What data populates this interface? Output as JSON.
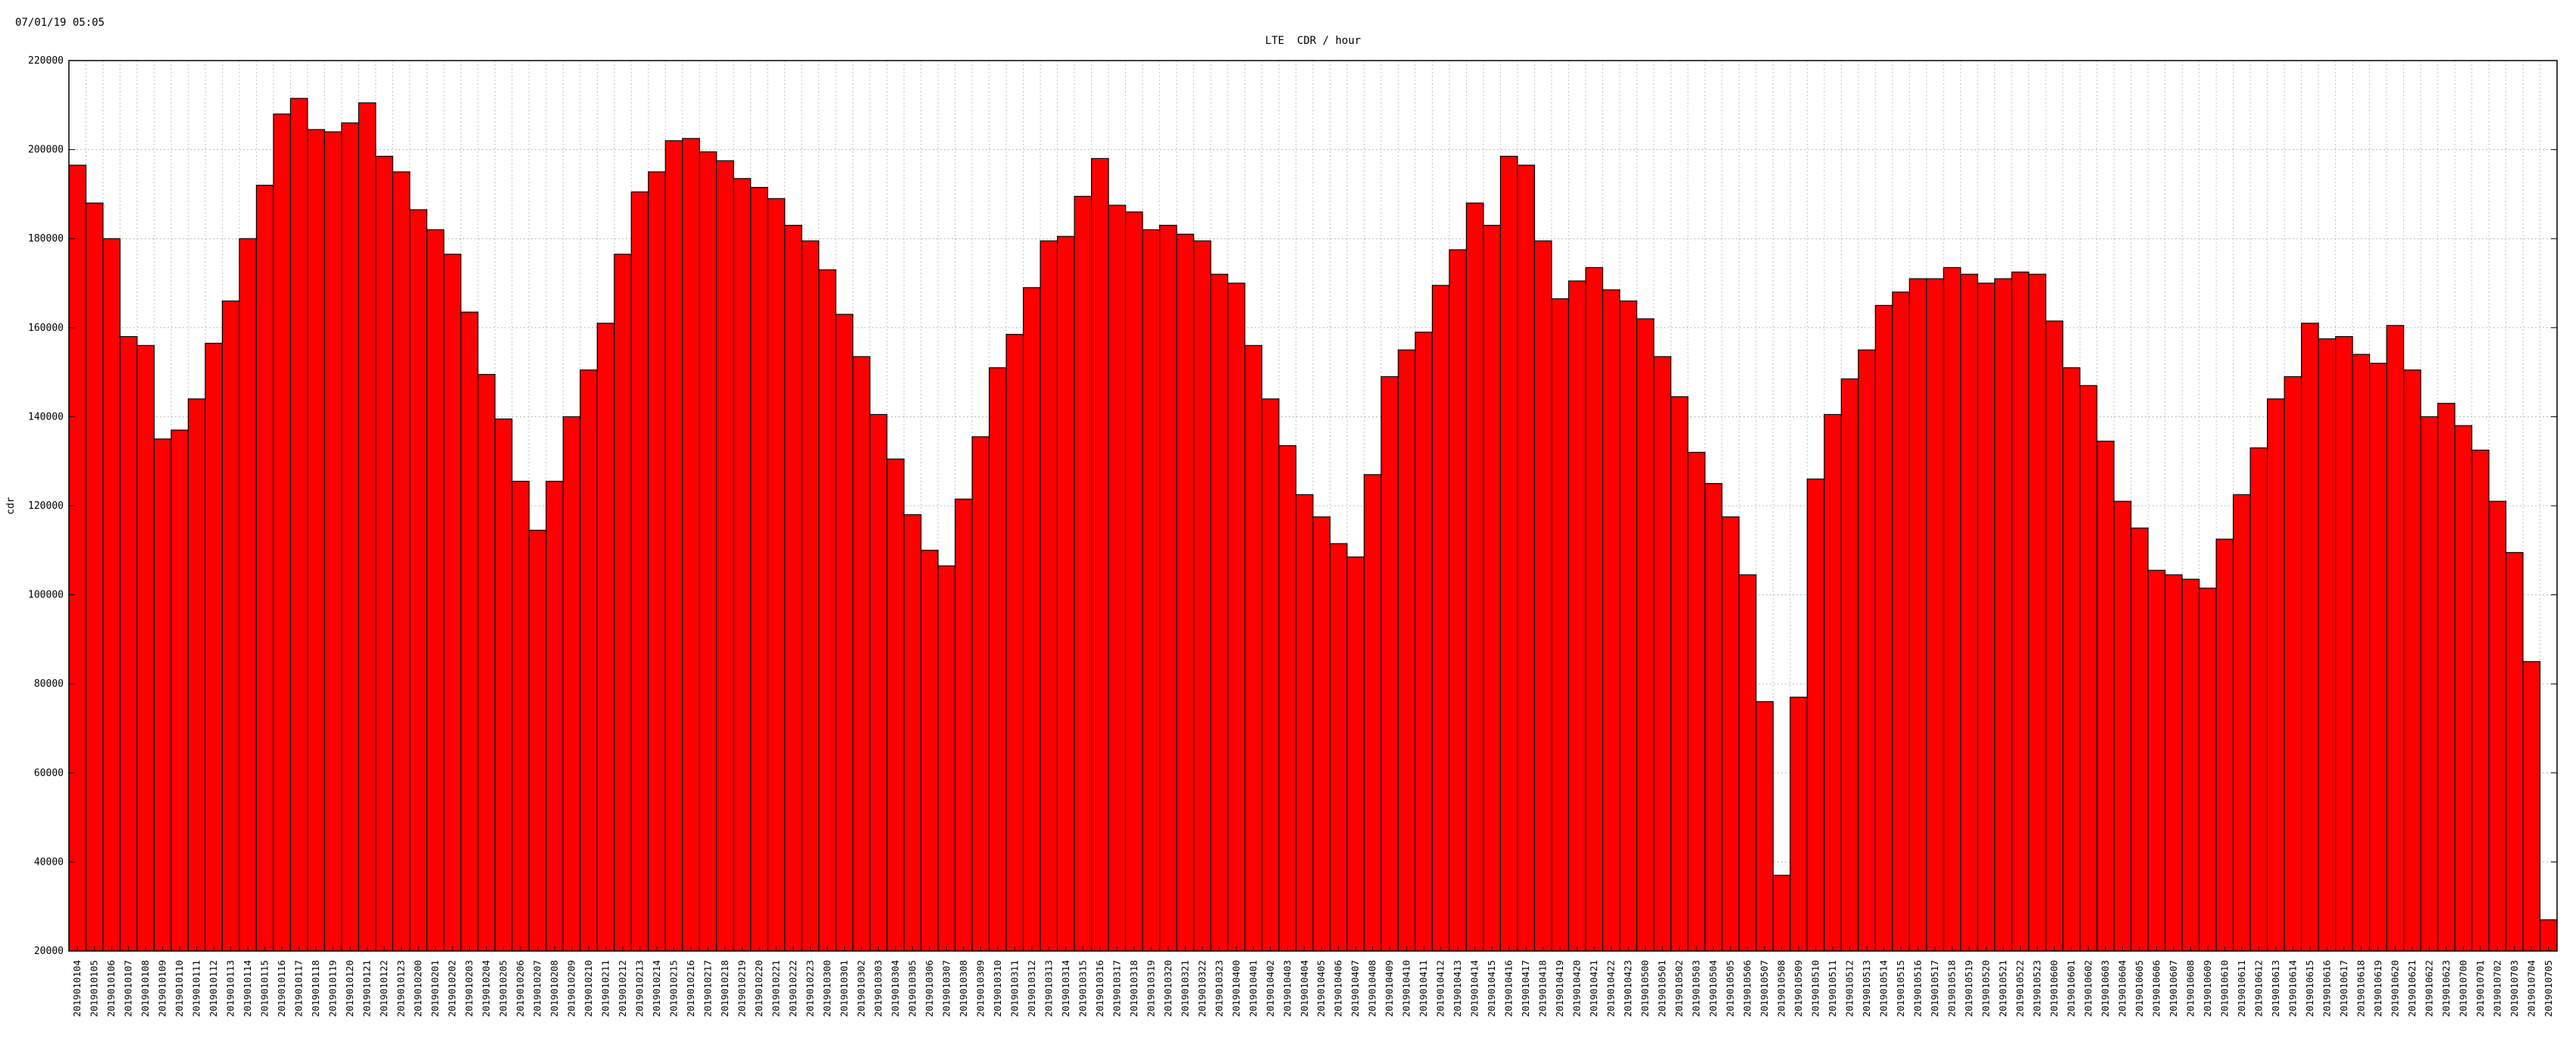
{
  "timestamp": "07/01/19 05:05",
  "chart_data": {
    "type": "bar",
    "title": "LTE  CDR / hour",
    "xlabel": "",
    "ylabel": "cdr",
    "ylim": [
      20000,
      220000
    ],
    "yticks": [
      20000,
      40000,
      60000,
      80000,
      100000,
      120000,
      140000,
      160000,
      180000,
      200000,
      220000
    ],
    "grid": true,
    "bar_color": "#ff0000",
    "bar_edge_color": "#000000",
    "categories": [
      "2019010104",
      "2019010105",
      "2019010106",
      "2019010107",
      "2019010108",
      "2019010109",
      "2019010110",
      "2019010111",
      "2019010112",
      "2019010113",
      "2019010114",
      "2019010115",
      "2019010116",
      "2019010117",
      "2019010118",
      "2019010119",
      "2019010120",
      "2019010121",
      "2019010122",
      "2019010123",
      "2019010200",
      "2019010201",
      "2019010202",
      "2019010203",
      "2019010204",
      "2019010205",
      "2019010206",
      "2019010207",
      "2019010208",
      "2019010209",
      "2019010210",
      "2019010211",
      "2019010212",
      "2019010213",
      "2019010214",
      "2019010215",
      "2019010216",
      "2019010217",
      "2019010218",
      "2019010219",
      "2019010220",
      "2019010221",
      "2019010222",
      "2019010223",
      "2019010300",
      "2019010301",
      "2019010302",
      "2019010303",
      "2019010304",
      "2019010305",
      "2019010306",
      "2019010307",
      "2019010308",
      "2019010309",
      "2019010310",
      "2019010311",
      "2019010312",
      "2019010313",
      "2019010314",
      "2019010315",
      "2019010316",
      "2019010317",
      "2019010318",
      "2019010319",
      "2019010320",
      "2019010321",
      "2019010322",
      "2019010323",
      "2019010400",
      "2019010401",
      "2019010402",
      "2019010403",
      "2019010404",
      "2019010405",
      "2019010406",
      "2019010407",
      "2019010408",
      "2019010409",
      "2019010410",
      "2019010411",
      "2019010412",
      "2019010413",
      "2019010414",
      "2019010415",
      "2019010416",
      "2019010417",
      "2019010418",
      "2019010419",
      "2019010420",
      "2019010421",
      "2019010422",
      "2019010423",
      "2019010500",
      "2019010501",
      "2019010502",
      "2019010503",
      "2019010504",
      "2019010505",
      "2019010506",
      "2019010507",
      "2019010508",
      "2019010509",
      "2019010510",
      "2019010511",
      "2019010512",
      "2019010513",
      "2019010514",
      "2019010515",
      "2019010516",
      "2019010517",
      "2019010518",
      "2019010519",
      "2019010520",
      "2019010521",
      "2019010522",
      "2019010523",
      "2019010600",
      "2019010601",
      "2019010602",
      "2019010603",
      "2019010604",
      "2019010605",
      "2019010606",
      "2019010607",
      "2019010608",
      "2019010609",
      "2019010610",
      "2019010611",
      "2019010612",
      "2019010613",
      "2019010614",
      "2019010615",
      "2019010616",
      "2019010617",
      "2019010618",
      "2019010619",
      "2019010620",
      "2019010621",
      "2019010622",
      "2019010623",
      "2019010700",
      "2019010701",
      "2019010702",
      "2019010703",
      "2019010704",
      "2019010705"
    ],
    "values": [
      196500,
      188000,
      180000,
      158000,
      156000,
      135000,
      137000,
      144000,
      156500,
      166000,
      180000,
      192000,
      208000,
      211500,
      204500,
      204000,
      206000,
      210500,
      198500,
      195000,
      186500,
      182000,
      176500,
      163500,
      149500,
      139500,
      125500,
      114500,
      125500,
      140000,
      150500,
      161000,
      176500,
      190500,
      195000,
      202000,
      202500,
      199500,
      197500,
      193500,
      191500,
      189000,
      183000,
      179500,
      173000,
      163000,
      153500,
      140500,
      130500,
      118000,
      110000,
      106500,
      121500,
      135500,
      151000,
      158500,
      169000,
      179500,
      180500,
      189500,
      198000,
      187500,
      186000,
      182000,
      183000,
      181000,
      179500,
      172000,
      170000,
      156000,
      144000,
      133500,
      122500,
      117500,
      111500,
      108500,
      127000,
      149000,
      155000,
      159000,
      169500,
      177500,
      188000,
      183000,
      198500,
      196500,
      179500,
      166500,
      170500,
      173500,
      168500,
      166000,
      162000,
      153500,
      144500,
      132000,
      125000,
      117500,
      104500,
      76000,
      37000,
      77000,
      126000,
      140500,
      148500,
      155000,
      165000,
      168000,
      171000,
      171000,
      173500,
      172000,
      170000,
      171000,
      172500,
      172000,
      161500,
      151000,
      147000,
      134500,
      121000,
      115000,
      105500,
      104500,
      103500,
      101500,
      112500,
      122500,
      133000,
      144000,
      149000,
      161000,
      157500,
      158000,
      154000,
      152000,
      160500,
      150500,
      140000,
      143000,
      138000,
      132500,
      121000,
      109500,
      85000,
      27000
    ]
  }
}
